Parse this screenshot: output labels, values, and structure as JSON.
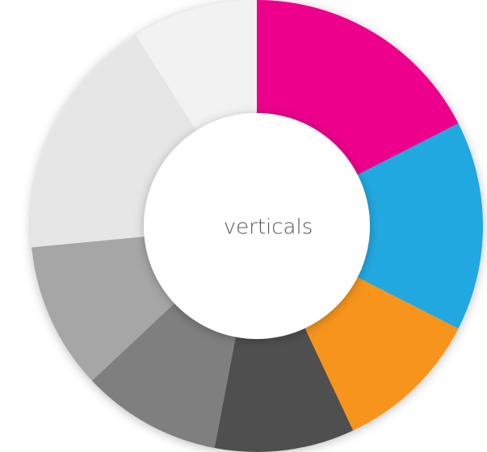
{
  "chart_data": {
    "type": "donut",
    "center_label": "verticals",
    "values": [
      17.5,
      15,
      10.5,
      10,
      10,
      10.5,
      17.5,
      9
    ],
    "colors": [
      "#ec008c",
      "#22a8e0",
      "#f7941d",
      "#505050",
      "#7f7f7f",
      "#a6a6a6",
      "#e6e6e6",
      "#f2f2f2"
    ]
  }
}
